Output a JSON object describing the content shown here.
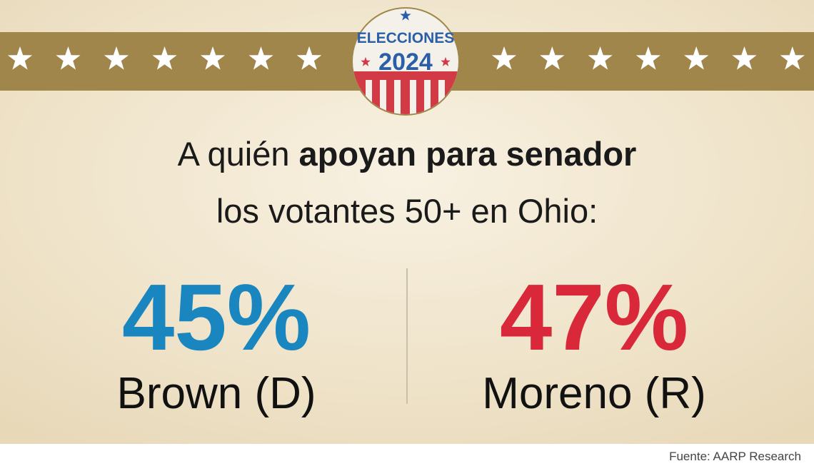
{
  "badge": {
    "top": "ELECCIONES",
    "year": "2024"
  },
  "headline": {
    "line1_regular": "A quién",
    "line1_bold": "apoyan para senador",
    "line2": "los votantes 50+ en Ohio:"
  },
  "results": [
    {
      "percent": "45%",
      "candidate": "Brown (D)",
      "color": "#1a86c0"
    },
    {
      "percent": "47%",
      "candidate": "Moreno (R)",
      "color": "#d9283a"
    }
  ],
  "source": "Fuente: AARP Research"
}
